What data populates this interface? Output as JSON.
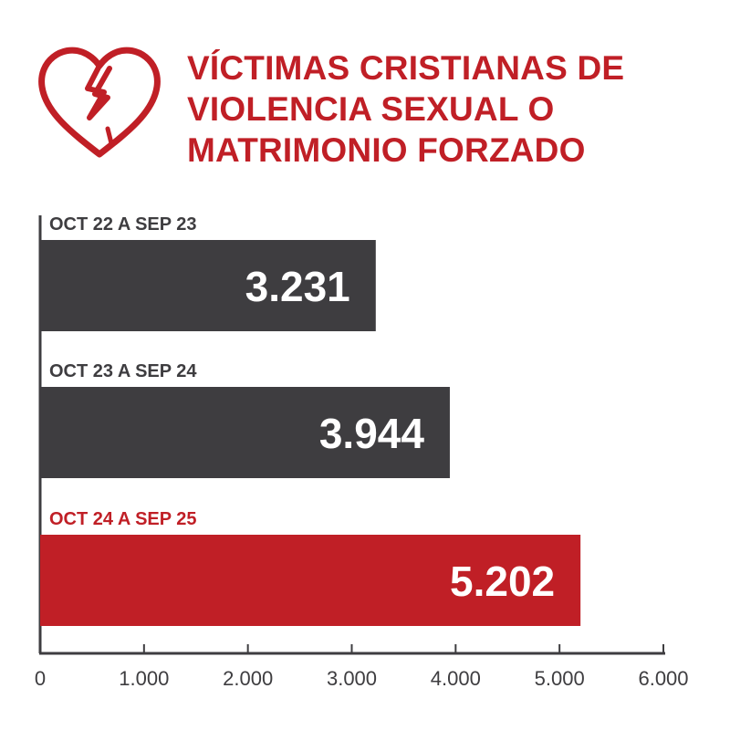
{
  "title": {
    "lines": [
      "VÍCTIMAS CRISTIANAS DE",
      "VIOLENCIA SEXUAL O",
      "MATRIMONIO FORZADO"
    ]
  },
  "icon": "broken-heart-icon",
  "colors": {
    "accent": "#c01f26",
    "dark": "#3e3d40",
    "axis": "#3e3d40"
  },
  "chart_data": {
    "type": "bar",
    "orientation": "horizontal",
    "categories": [
      "OCT 22 A SEP 23",
      "OCT 23 A SEP 24",
      "OCT 24 A SEP 25"
    ],
    "values": [
      3231,
      3944,
      5202
    ],
    "value_labels": [
      "3.231",
      "3.944",
      "5.202"
    ],
    "bar_colors": [
      "#3e3d40",
      "#3e3d40",
      "#c01f26"
    ],
    "label_colors": [
      "#3e3d40",
      "#3e3d40",
      "#c01f26"
    ],
    "xlim": [
      0,
      6000
    ],
    "xticks": [
      0,
      1000,
      2000,
      3000,
      4000,
      5000,
      6000
    ],
    "xtick_labels": [
      "0",
      "1.000",
      "2.000",
      "3.000",
      "4.000",
      "5.000",
      "6.000"
    ],
    "grid": false
  }
}
